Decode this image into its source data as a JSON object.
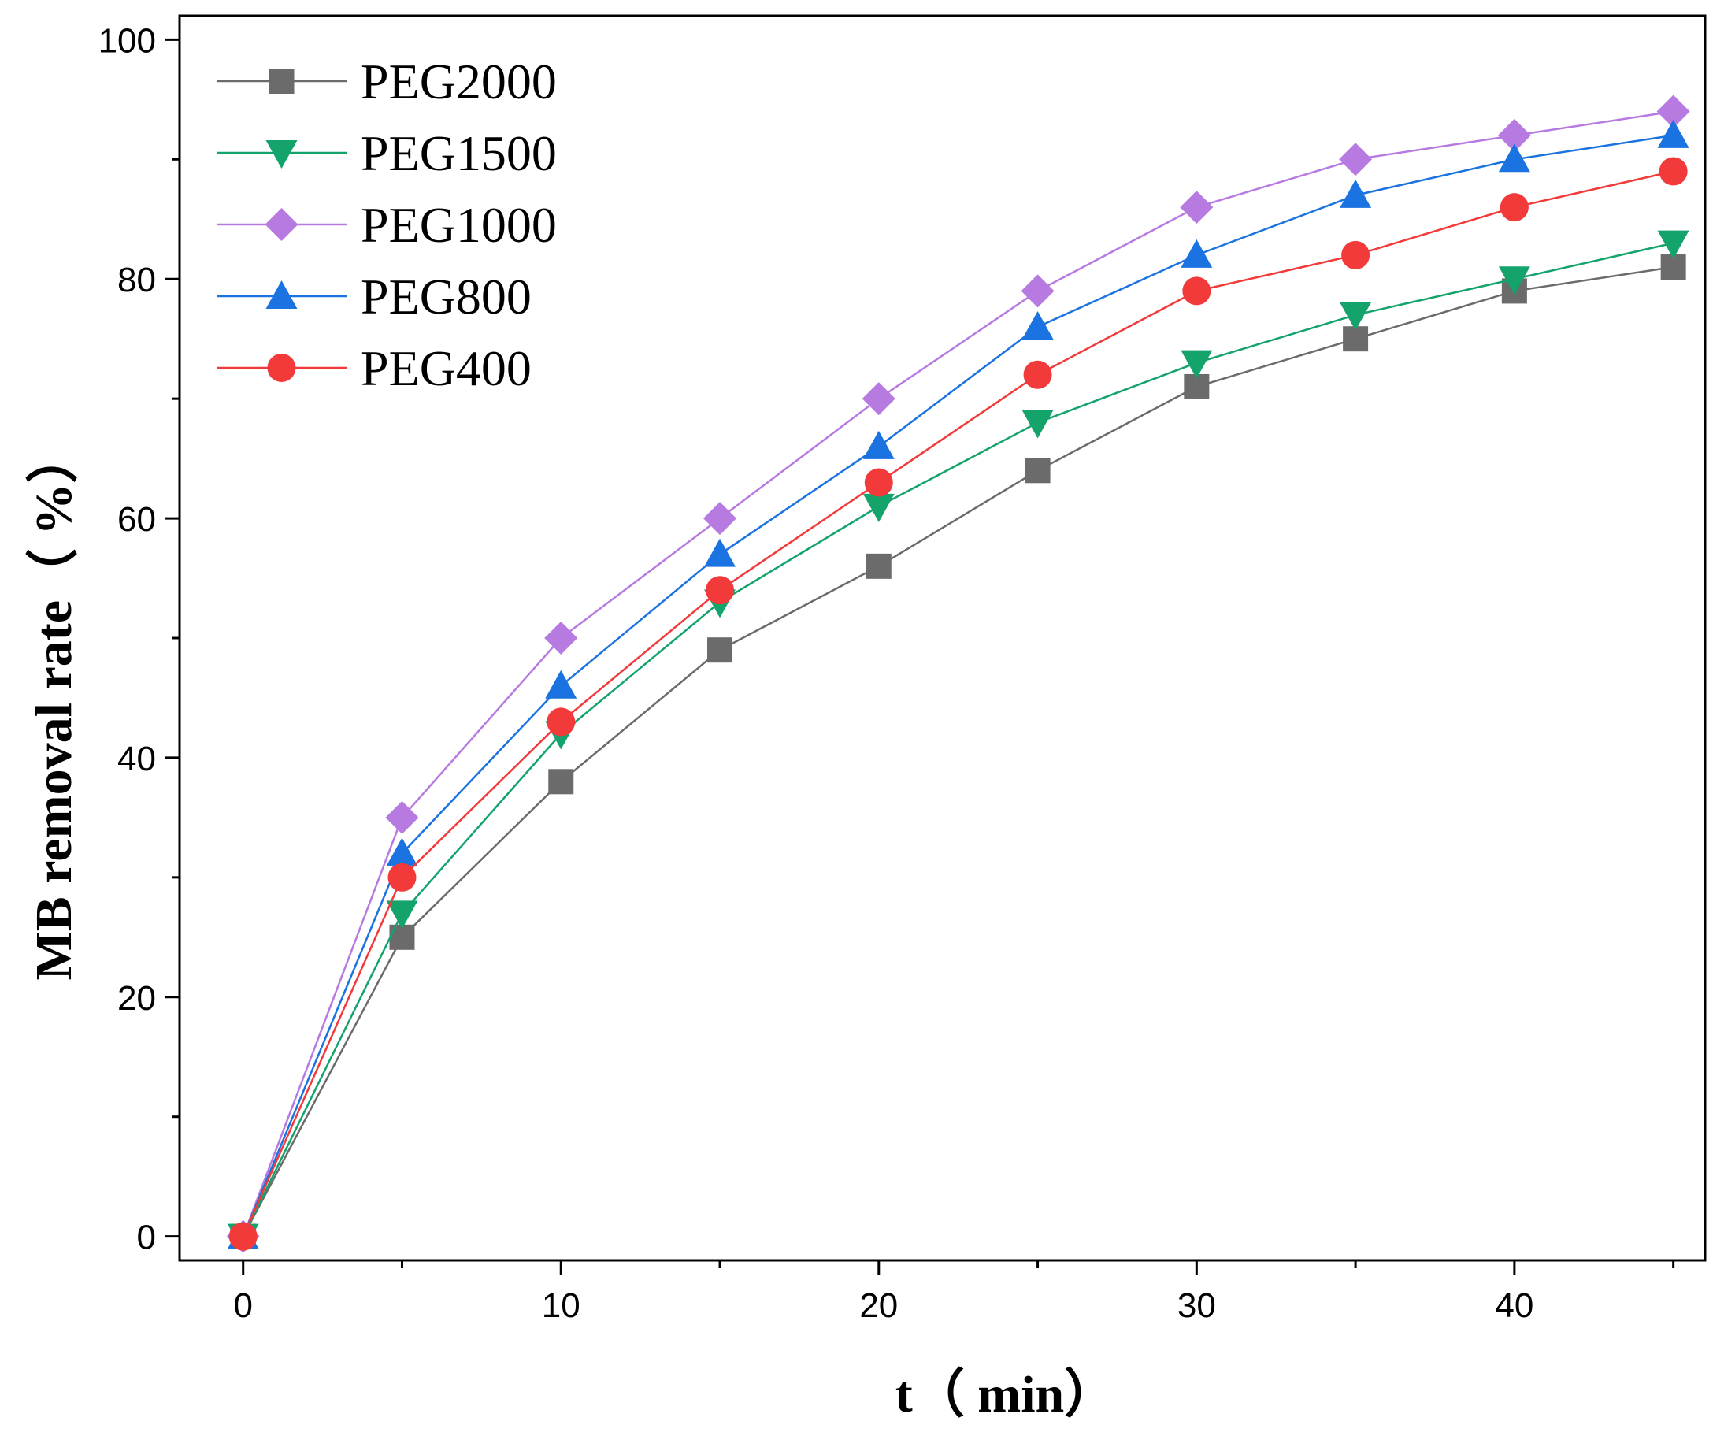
{
  "chart_data": {
    "type": "line",
    "title": "",
    "xlabel": "t（ min）",
    "ylabel": "MB removal rate（ %）",
    "xlim": [
      -2,
      46
    ],
    "ylim": [
      -2,
      102
    ],
    "x_major_ticks": [
      0,
      10,
      20,
      30,
      40
    ],
    "x_minor_ticks": [
      5,
      15,
      25,
      35,
      45
    ],
    "y_major_ticks": [
      0,
      20,
      40,
      60,
      80,
      100
    ],
    "y_minor_ticks": [
      10,
      30,
      50,
      70,
      90
    ],
    "x_tick_labels": [
      "0",
      "10",
      "20",
      "30",
      "40"
    ],
    "y_tick_labels": [
      "0",
      "20",
      "40",
      "60",
      "80",
      "100"
    ],
    "grid": false,
    "legend_position": "top-left",
    "x": [
      0,
      5,
      10,
      15,
      20,
      25,
      30,
      35,
      40,
      45
    ],
    "series": [
      {
        "name": "PEG2000",
        "color": "#6b6b6b",
        "marker": "square",
        "values": [
          0,
          25,
          38,
          49,
          56,
          64,
          71,
          75,
          79,
          81
        ]
      },
      {
        "name": "PEG1500",
        "color": "#13a36b",
        "marker": "triangle-down",
        "values": [
          0,
          27,
          42,
          53,
          61,
          68,
          73,
          77,
          80,
          83
        ]
      },
      {
        "name": "PEG1000",
        "color": "#b67ae0",
        "marker": "diamond",
        "values": [
          0,
          35,
          50,
          60,
          70,
          79,
          86,
          90,
          92,
          94
        ]
      },
      {
        "name": "PEG800",
        "color": "#1a73e0",
        "marker": "triangle-up",
        "values": [
          0,
          32,
          46,
          57,
          66,
          76,
          82,
          87,
          90,
          92
        ]
      },
      {
        "name": "PEG400",
        "color": "#f23a3a",
        "marker": "circle",
        "values": [
          0,
          30,
          43,
          54,
          63,
          72,
          79,
          82,
          86,
          89
        ]
      }
    ]
  }
}
